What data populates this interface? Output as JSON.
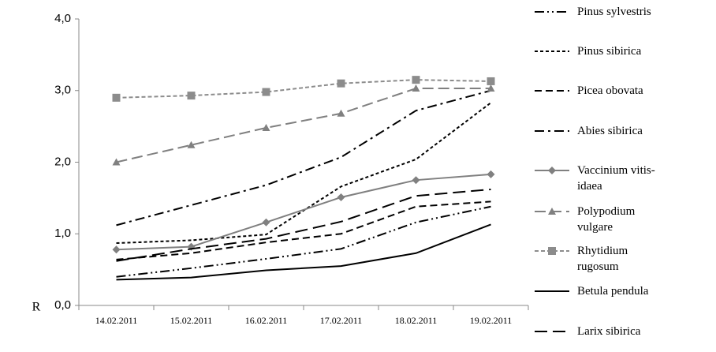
{
  "chart_data": {
    "type": "line",
    "y_label": "R",
    "categories": [
      "14.02.2011",
      "15.02.2011",
      "16.02.2011",
      "17.02.2011",
      "18.02.2011",
      "19.02.2011"
    ],
    "ylim": [
      0,
      4
    ],
    "yticks": [
      {
        "value": 0,
        "label": "0,0"
      },
      {
        "value": 1,
        "label": "1,0"
      },
      {
        "value": 2,
        "label": "2,0"
      },
      {
        "value": 3,
        "label": "3,0"
      },
      {
        "value": 4,
        "label": "4,0"
      }
    ],
    "grid": false,
    "legend": "right",
    "series": [
      {
        "name": "Pinus sylvestris",
        "color": "#000000",
        "dash": "12,4,2,4,2,4",
        "marker": "none",
        "values": [
          0.4,
          0.52,
          0.65,
          0.79,
          1.16,
          1.38
        ]
      },
      {
        "name": "Pinus sibirica",
        "color": "#000000",
        "dash": "4,3",
        "marker": "none",
        "values": [
          0.87,
          0.91,
          0.99,
          1.66,
          2.04,
          2.83
        ]
      },
      {
        "name": "Picea obovata",
        "color": "#000000",
        "dash": "9,5",
        "marker": "none",
        "values": [
          0.64,
          0.73,
          0.88,
          1.0,
          1.38,
          1.45
        ]
      },
      {
        "name": "Abies sibirica",
        "color": "#000000",
        "dash": "12,5,3,5",
        "marker": "none",
        "values": [
          1.12,
          1.4,
          1.68,
          2.07,
          2.72,
          3.0
        ]
      },
      {
        "name": "Vaccinium vitis-idaea",
        "color": "#808080",
        "dash": "none",
        "marker": "diamond",
        "values": [
          0.78,
          0.82,
          1.16,
          1.51,
          1.75,
          1.83
        ]
      },
      {
        "name": "Polypodium vulgare",
        "color": "#808080",
        "dash": "14,6",
        "marker": "triangle",
        "values": [
          2.0,
          2.24,
          2.48,
          2.68,
          3.03,
          3.03
        ]
      },
      {
        "name": "Rhytidium rugosum",
        "color": "#8c8c8c",
        "dash": "5,3",
        "marker": "square",
        "values": [
          2.9,
          2.93,
          2.98,
          3.1,
          3.15,
          3.13
        ]
      },
      {
        "name": "Betula pendula",
        "color": "#000000",
        "dash": "none",
        "marker": "none",
        "values": [
          0.36,
          0.39,
          0.49,
          0.55,
          0.73,
          1.13
        ]
      },
      {
        "name": "Larix sibirica",
        "color": "#000000",
        "dash": "16,7",
        "marker": "none",
        "values": [
          0.62,
          0.79,
          0.93,
          1.17,
          1.53,
          1.62
        ]
      }
    ]
  }
}
